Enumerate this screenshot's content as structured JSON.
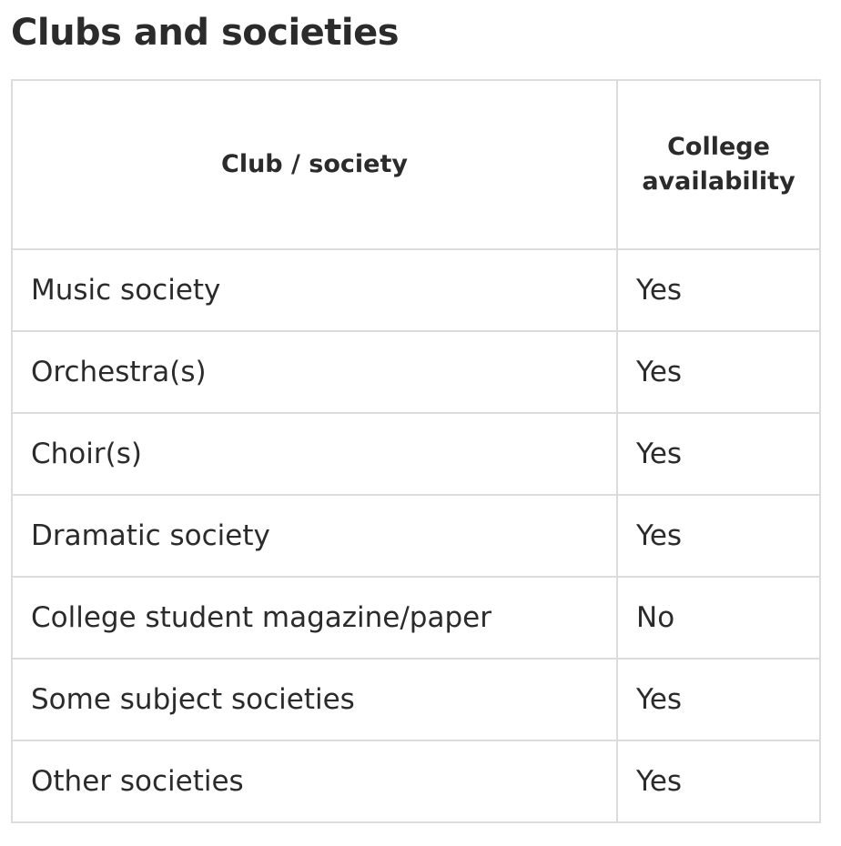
{
  "page": {
    "title": "Clubs and societies"
  },
  "table": {
    "headers": [
      "Club / society",
      "College availability"
    ],
    "rows": [
      {
        "club": "Music society",
        "availability": "Yes"
      },
      {
        "club": "Orchestra(s)",
        "availability": "Yes"
      },
      {
        "club": "Choir(s)",
        "availability": "Yes"
      },
      {
        "club": "Dramatic society",
        "availability": "Yes"
      },
      {
        "club": "College student magazine/paper",
        "availability": "No"
      },
      {
        "club": "Some subject societies",
        "availability": "Yes"
      },
      {
        "club": "Other societies",
        "availability": "Yes"
      }
    ]
  }
}
